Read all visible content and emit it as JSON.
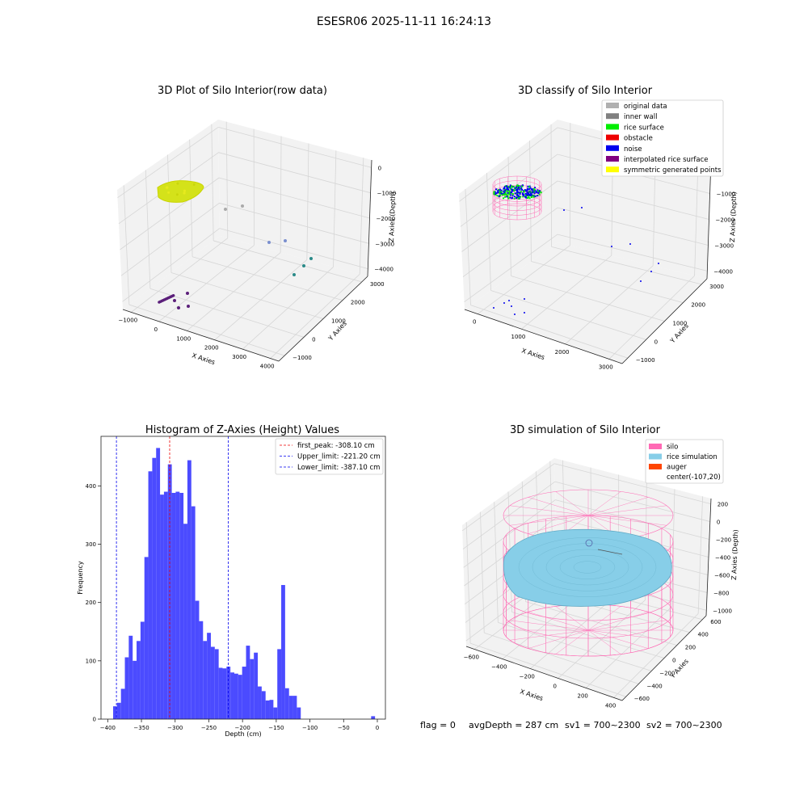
{
  "suptitle": "ESESR06 2025-11-11 16:24:13",
  "footer": {
    "flag": "flag = 0",
    "avg_depth": "avgDepth = 287 cm",
    "sv1": "sv1 = 700~2300",
    "sv2": "sv2 = 700~2300"
  },
  "chart_data": [
    {
      "type": "scatter",
      "title": "3D Plot of Silo Interior(row data)",
      "xlabel": "X Axies",
      "ylabel": "Y Axies",
      "zlabel": "Z Axies (Depth)",
      "x_ticks": [
        "−1000",
        "0",
        "1000",
        "2000",
        "3000",
        "4000"
      ],
      "y_ticks": [
        "−1000",
        "0",
        "1000",
        "2000",
        "3000"
      ],
      "z_ticks": [
        "−4000",
        "−3000",
        "−2000",
        "−1000",
        "0"
      ],
      "colors": {
        "cluster": "#d4e21a",
        "gray": "#aaaaaa",
        "blue": "#7a8fcf",
        "teal": "#2a8a88",
        "purple": "#5b1f7a"
      }
    },
    {
      "type": "scatter",
      "title": "3D classify of Silo Interior",
      "xlabel": "X Axies",
      "ylabel": "Y Axies",
      "zlabel": "Z Axies (Depth)",
      "x_ticks": [
        "0",
        "1000",
        "2000",
        "3000"
      ],
      "y_ticks": [
        "−1000",
        "0",
        "1000",
        "2000",
        "3000"
      ],
      "z_ticks": [
        "−4000",
        "−3000",
        "−2000",
        "−1000",
        "0"
      ],
      "legend": [
        {
          "label": "original data",
          "color": "#b0b0b0"
        },
        {
          "label": "inner wall",
          "color": "#808080"
        },
        {
          "label": "rice surface",
          "color": "#00ee00"
        },
        {
          "label": "obstacle",
          "color": "#ee0000"
        },
        {
          "label": "noise",
          "color": "#0000ee"
        },
        {
          "label": "interpolated rice surface",
          "color": "#800080"
        },
        {
          "label": "symmetric generated points",
          "color": "#ffff00"
        }
      ]
    },
    {
      "type": "bar",
      "title": "Histogram of Z-Axies (Height) Values",
      "xlabel": "Depth (cm)",
      "ylabel": "Frequency",
      "xlim": [
        -410,
        12
      ],
      "ylim": [
        0,
        485
      ],
      "x_ticks": [
        -400,
        -350,
        -300,
        -250,
        -200,
        -150,
        -100,
        -50,
        0
      ],
      "y_ticks": [
        0,
        100,
        200,
        300,
        400
      ],
      "bin_edges": [
        -392,
        -386.2,
        -380.4,
        -374.6,
        -368.8,
        -363,
        -357.2,
        -351.4,
        -345.6,
        -339.8,
        -334,
        -328.2,
        -322.4,
        -316.6,
        -310.8,
        -305,
        -299.2,
        -293.4,
        -287.6,
        -281.8,
        -276,
        -270.2,
        -264.4,
        -258.6,
        -252.8,
        -247,
        -241.2,
        -235.4,
        -229.6,
        -223.8,
        -218,
        -212.2,
        -206.4,
        -200.6,
        -194.8,
        -189,
        -183.2,
        -177.4,
        -171.6,
        -165.8,
        -160,
        -154.2,
        -148.4,
        -142.6,
        -136.8,
        -131,
        -125.2,
        -119.4,
        -113.6,
        -107.8,
        -102,
        -96.2,
        -90.4,
        -84.6,
        -78.8,
        -73,
        -67.2,
        -61.4,
        -55.6,
        -49.8,
        -44,
        -38.2,
        -32.4,
        -26.6,
        -20.8,
        -15,
        -9.2,
        -3.4
      ],
      "values": [
        22,
        28,
        52,
        106,
        143,
        100,
        134,
        167,
        278,
        425,
        448,
        465,
        385,
        390,
        437,
        388,
        390,
        388,
        335,
        444,
        365,
        203,
        168,
        134,
        148,
        124,
        120,
        88,
        87,
        90,
        80,
        78,
        76,
        90,
        126,
        103,
        114,
        56,
        48,
        32,
        33,
        20,
        120,
        230,
        53,
        40,
        40,
        20,
        0,
        0,
        0,
        0,
        0,
        0,
        0,
        0,
        0,
        0,
        0,
        0,
        0,
        0,
        0,
        0,
        0,
        0,
        5
      ],
      "color": "#4b4bff",
      "vlines": [
        {
          "label": "first_peak: -308.10 cm",
          "x": -308.1,
          "color": "#ee0000"
        },
        {
          "label": "Upper_limit: -221.20 cm",
          "x": -221.2,
          "color": "#0000ee"
        },
        {
          "label": "Lower_limit: -387.10 cm",
          "x": -387.1,
          "color": "#0000ee"
        }
      ],
      "legend_position": "top-right"
    },
    {
      "type": "scatter",
      "title": "3D simulation of Silo Interior",
      "xlabel": "X Axies",
      "ylabel": "Y Axies",
      "zlabel": "Z Axies (Depth)",
      "x_ticks": [
        "−600",
        "−400",
        "−200",
        "0",
        "200",
        "400"
      ],
      "y_ticks": [
        "−600",
        "−400",
        "−200",
        "0",
        "200",
        "400",
        "600"
      ],
      "z_ticks": [
        "−1000",
        "−800",
        "−600",
        "−400",
        "−200",
        "0",
        "200"
      ],
      "legend": [
        {
          "label": "silo",
          "color": "#ff69b4"
        },
        {
          "label": "rice simulation",
          "color": "#87cee8"
        },
        {
          "label": "auger",
          "color": "#ff4500"
        },
        {
          "label": "center(-107,20)",
          "color": ""
        }
      ]
    }
  ]
}
